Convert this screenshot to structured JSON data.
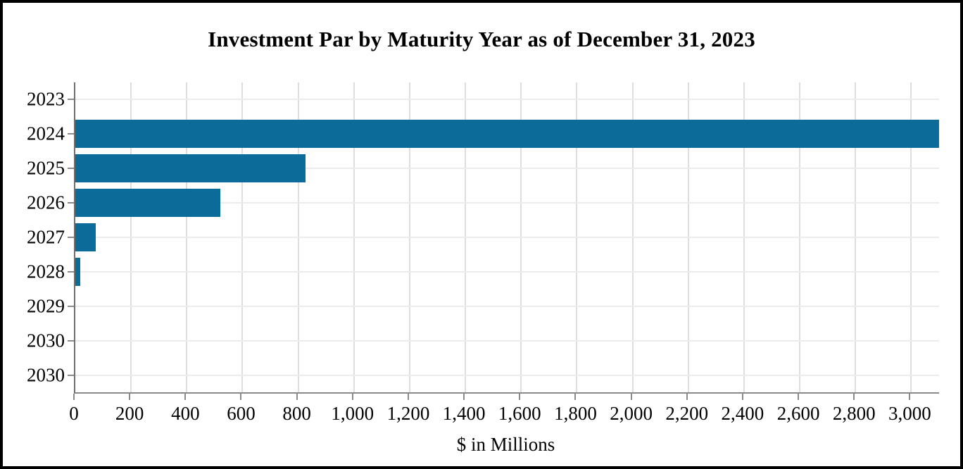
{
  "chart_data": {
    "type": "bar",
    "orientation": "horizontal",
    "title": "Investment Par by Maturity Year as of December 31, 2023",
    "categories": [
      "2023",
      "2024",
      "2025",
      "2026",
      "2027",
      "2028",
      "2029",
      "2030",
      "2030"
    ],
    "values": [
      0,
      3100,
      825,
      520,
      73,
      18,
      0,
      0,
      0
    ],
    "xlabel": "$ in Millions",
    "ylabel": "",
    "xlim": [
      0,
      3100
    ],
    "x_ticks": [
      0,
      200,
      400,
      600,
      800,
      1000,
      1200,
      1400,
      1600,
      1800,
      2000,
      2200,
      2400,
      2600,
      2800,
      3000
    ],
    "x_tick_labels": [
      "0",
      "200",
      "400",
      "600",
      "800",
      "1,000",
      "1,200",
      "1,400",
      "1,600",
      "1,800",
      "2,000",
      "2,200",
      "2,400",
      "2,600",
      "2,800",
      "3,000"
    ],
    "grid": true,
    "legend": "none",
    "colors": {
      "bar": "#0D6B99",
      "axis": "#8a8a8a",
      "grid_vertical": "#dedede",
      "grid_horizontal": "#ececec",
      "text": "#000000",
      "frame_border": "#000000",
      "background": "#ffffff"
    }
  }
}
